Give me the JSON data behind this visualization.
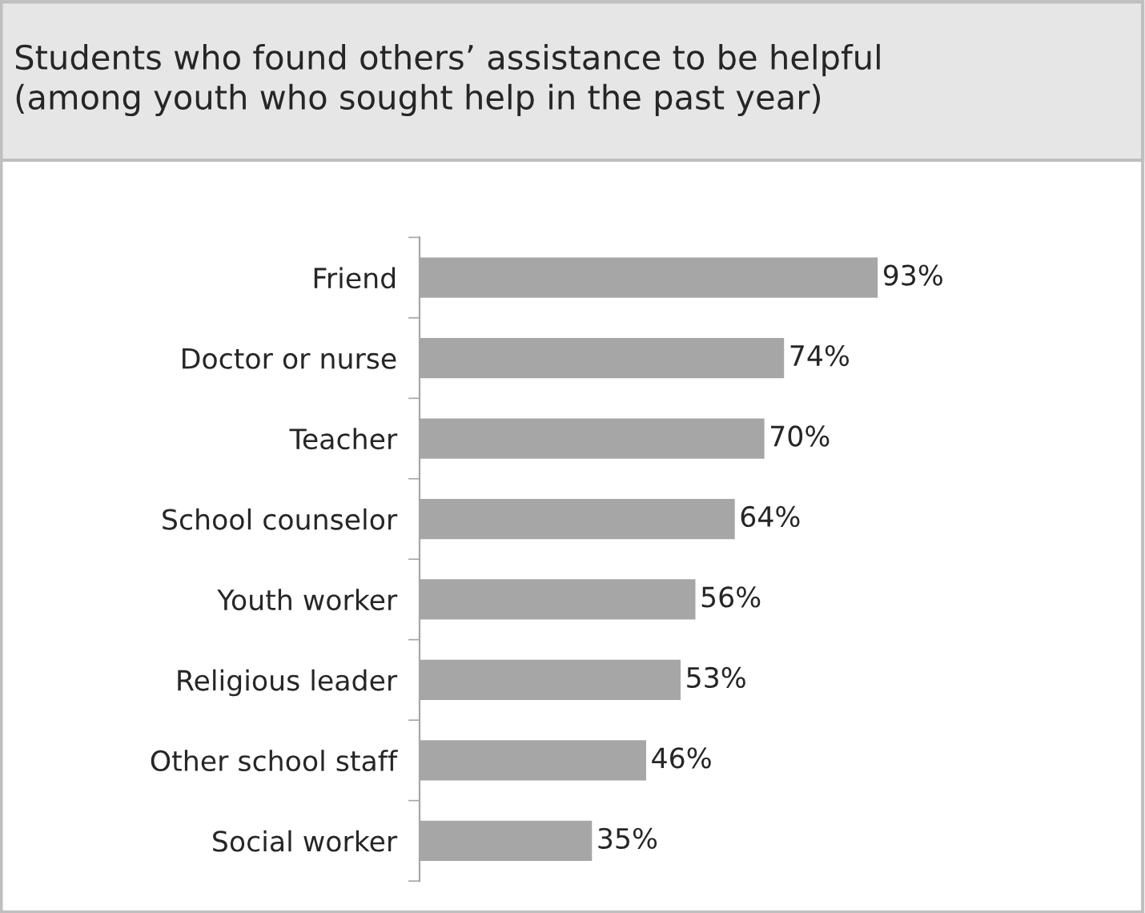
{
  "chart_data": {
    "type": "bar",
    "orientation": "horizontal",
    "title": "Students who found others’ assistance to be helpful\n(among youth who sought help in the past year)",
    "categories": [
      "Friend",
      "Doctor or nurse",
      "Teacher",
      "School counselor",
      "Youth worker",
      "Religious leader",
      "Other school staff",
      "Social worker"
    ],
    "values": [
      93,
      74,
      70,
      64,
      56,
      53,
      46,
      35
    ],
    "value_labels": [
      "93%",
      "74%",
      "70%",
      "64%",
      "56%",
      "53%",
      "46%",
      "35%"
    ],
    "color": "#a6a6a6",
    "tick_labels": "y"
  }
}
